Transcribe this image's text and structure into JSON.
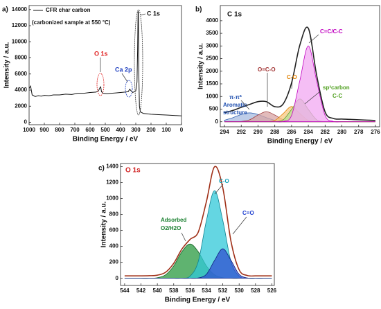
{
  "chart_data": [
    {
      "type": "line",
      "panel": "a)",
      "xlabel": "Binding Energy / eV",
      "ylabel": "Intensity / a.u.",
      "subtitle": "(carbonized sample at 550 °C)",
      "xlim": [
        1000,
        0
      ],
      "ylim": [
        -300,
        14500
      ],
      "xticks": [
        1000,
        900,
        800,
        700,
        600,
        500,
        400,
        300,
        200,
        100,
        0
      ],
      "yticks": [
        0,
        2000,
        4000,
        6000,
        8000,
        10000,
        12000,
        14000
      ],
      "x": [
        1000,
        990,
        980,
        960,
        940,
        920,
        900,
        870,
        840,
        800,
        760,
        720,
        680,
        640,
        600,
        560,
        545,
        535,
        530,
        525,
        515,
        490,
        460,
        430,
        400,
        370,
        350,
        340,
        320,
        300,
        292,
        288,
        285,
        283,
        280,
        276,
        270,
        250,
        200,
        150,
        100,
        50,
        0
      ],
      "series": [
        {
          "name": "CFR char carbon",
          "color": "#111111",
          "values": [
            4200,
            4500,
            3400,
            3200,
            3300,
            3250,
            3350,
            3300,
            3400,
            3400,
            3500,
            3450,
            3600,
            3600,
            3700,
            3750,
            3900,
            4300,
            4400,
            3800,
            3600,
            3550,
            3600,
            3650,
            3700,
            3750,
            3800,
            4100,
            3700,
            3900,
            5000,
            9000,
            13800,
            13700,
            6000,
            2000,
            1300,
            1100,
            1000,
            950,
            900,
            850,
            800
          ]
        }
      ],
      "annotations": [
        {
          "text": "O 1s",
          "color": "#e02020"
        },
        {
          "text": "Ca 2p",
          "color": "#2040c0"
        },
        {
          "text": "C 1s",
          "color": "#111111"
        }
      ]
    },
    {
      "type": "line",
      "panel": "b)",
      "title": "C 1s",
      "xlabel": "Binding Energy / eV",
      "ylabel": "Intensity / a.u.",
      "xlim": [
        294.5,
        275.5
      ],
      "ylim": [
        -200,
        4600
      ],
      "xticks": [
        294,
        292,
        290,
        288,
        286,
        284,
        282,
        280,
        278,
        276
      ],
      "yticks": [
        0,
        500,
        1000,
        1500,
        2000,
        2500,
        3000,
        3500,
        4000
      ],
      "x": [
        294,
        293,
        292,
        291,
        290,
        289,
        288,
        287,
        286,
        285,
        284,
        283,
        282,
        281,
        280,
        279,
        278,
        277,
        276
      ],
      "series": [
        {
          "color": "#3060b0",
          "fill": "#a8bce0",
          "values": [
            60,
            160,
            288,
            350,
            288,
            160,
            60,
            15,
            3,
            0,
            0,
            0,
            0,
            0,
            0,
            0,
            0,
            0,
            0
          ]
        },
        {
          "color": "#a04040",
          "fill": "#d8a4a4",
          "values": [
            0,
            0,
            10,
            77,
            265,
            400,
            265,
            77,
            10,
            0,
            0,
            0,
            0,
            0,
            0,
            0,
            0,
            0,
            0
          ]
        },
        {
          "color": "#e08000",
          "fill": "#f8c880",
          "values": [
            0,
            0,
            0,
            0,
            0,
            3,
            50,
            324,
            600,
            324,
            50,
            3,
            0,
            0,
            0,
            0,
            0,
            0,
            0
          ]
        },
        {
          "color": "#60a030",
          "fill": "#b8dc98",
          "values": [
            0,
            0,
            0,
            0,
            0,
            0,
            4,
            76,
            486,
            900,
            486,
            76,
            4,
            0,
            0,
            0,
            0,
            0,
            0
          ]
        },
        {
          "color": "#c000c0",
          "fill": "#f2a8f2",
          "values": [
            0,
            0,
            0,
            0,
            0,
            0,
            0,
            10,
            250,
            1650,
            3000,
            1600,
            250,
            10,
            0,
            0,
            0,
            0,
            0
          ]
        },
        {
          "color": "#222222",
          "values": [
            360,
            446,
            570,
            685,
            797,
            794,
            596,
            705,
            1538,
            3049,
            3697,
            1826,
            387,
            129,
            106,
            92,
            78,
            64,
            50
          ]
        }
      ],
      "annotations": [
        {
          "text": "π-π*",
          "color": "#2050b0"
        },
        {
          "text": "Aromatic",
          "color": "#2050b0"
        },
        {
          "text": "structure",
          "color": "#2050b0"
        },
        {
          "text": "O=C-O",
          "color": "#a03030"
        },
        {
          "text": "C-O",
          "color": "#e08000"
        },
        {
          "text": "sp³carbon",
          "color": "#50a020"
        },
        {
          "text": "C-C",
          "color": "#50a020"
        },
        {
          "text": "C=C/C-C",
          "color": "#c000c0"
        }
      ]
    },
    {
      "type": "line",
      "panel": "c)",
      "title": "O 1s",
      "title_color": "#d02020",
      "xlabel": "Binding Energy / eV",
      "ylabel": "Intensity / a.u.",
      "xlim": [
        544.5,
        525.7
      ],
      "ylim": [
        -90,
        1440
      ],
      "xticks": [
        544,
        542,
        540,
        538,
        536,
        534,
        532,
        530,
        528,
        526
      ],
      "yticks": [
        0,
        200,
        400,
        600,
        800,
        1000,
        1200,
        1400
      ],
      "x": [
        544,
        543,
        542,
        541,
        540,
        539,
        538,
        537,
        536,
        535,
        534,
        533,
        532,
        531,
        530,
        529,
        528,
        527,
        526
      ],
      "series": [
        {
          "color": "#106020",
          "fill": "#2a9a40",
          "values": [
            0,
            0,
            0,
            0,
            7,
            43,
            155,
            333,
            430,
            333,
            155,
            43,
            7,
            0,
            0,
            0,
            0,
            0,
            0
          ]
        },
        {
          "color": "#108090",
          "fill": "#30c8d8",
          "values": [
            0,
            0,
            0,
            0,
            0,
            0,
            0,
            1,
            26,
            210,
            726,
            1100,
            726,
            210,
            26,
            1,
            0,
            0,
            0
          ]
        },
        {
          "color": "#102080",
          "fill": "#3050d0",
          "values": [
            0,
            0,
            0,
            0,
            0,
            0,
            0,
            0,
            0,
            4,
            50,
            225,
            370,
            225,
            50,
            4,
            0,
            0,
            0
          ]
        },
        {
          "color": "#a03018",
          "values": [
            30,
            30,
            30,
            32,
            39,
            75,
            187,
            366,
            488,
            579,
            963,
            1400,
            1135,
            465,
            106,
            35,
            30,
            30,
            30
          ]
        }
      ],
      "annotations": [
        {
          "text": "Adsorbed",
          "color": "#1a8030"
        },
        {
          "text": "O2/H2O",
          "color": "#1a8030"
        },
        {
          "text": "C-O",
          "color": "#10a0b8"
        },
        {
          "text": "C=O",
          "color": "#2040d0"
        }
      ]
    }
  ]
}
